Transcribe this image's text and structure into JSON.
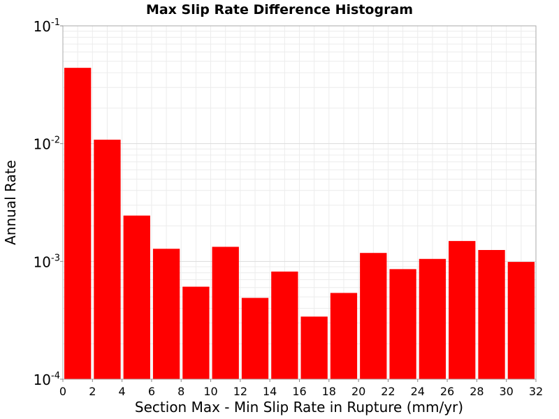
{
  "chart_data": {
    "type": "bar",
    "title": "Max Slip Rate Difference Histogram",
    "xlabel": "Section Max - Min Slip Rate in Rupture (mm/yr)",
    "ylabel": "Annual Rate",
    "yscale": "log",
    "xlim": [
      0,
      32
    ],
    "ylim": [
      0.0001,
      0.1
    ],
    "bin_width": 2,
    "x_ticks": [
      "0",
      "2",
      "4",
      "6",
      "8",
      "10",
      "12",
      "14",
      "16",
      "18",
      "20",
      "22",
      "24",
      "26",
      "28",
      "30",
      "32"
    ],
    "y_ticks": [
      {
        "value": 0.1,
        "base": "10",
        "exp": "-1"
      },
      {
        "value": 0.01,
        "base": "10",
        "exp": "-2"
      },
      {
        "value": 0.001,
        "base": "10",
        "exp": "-3"
      },
      {
        "value": 0.0001,
        "base": "10",
        "exp": "-4"
      }
    ],
    "bars": [
      {
        "x0": 0,
        "x1": 2,
        "value": 0.044
      },
      {
        "x0": 2,
        "x1": 4,
        "value": 0.0108
      },
      {
        "x0": 4,
        "x1": 6,
        "value": 0.00245
      },
      {
        "x0": 6,
        "x1": 8,
        "value": 0.00128
      },
      {
        "x0": 8,
        "x1": 10,
        "value": 0.00061
      },
      {
        "x0": 10,
        "x1": 12,
        "value": 0.00133
      },
      {
        "x0": 12,
        "x1": 14,
        "value": 0.00049
      },
      {
        "x0": 14,
        "x1": 16,
        "value": 0.00082
      },
      {
        "x0": 16,
        "x1": 18,
        "value": 0.00034
      },
      {
        "x0": 18,
        "x1": 20,
        "value": 0.00054
      },
      {
        "x0": 20,
        "x1": 22,
        "value": 0.00118
      },
      {
        "x0": 22,
        "x1": 24,
        "value": 0.00086
      },
      {
        "x0": 24,
        "x1": 26,
        "value": 0.00105
      },
      {
        "x0": 26,
        "x1": 28,
        "value": 0.00149
      },
      {
        "x0": 28,
        "x1": 30,
        "value": 0.00125
      },
      {
        "x0": 30,
        "x1": 32,
        "value": 0.00099
      }
    ],
    "bar_color": "#ff0000",
    "grid": true,
    "legend": "none"
  }
}
